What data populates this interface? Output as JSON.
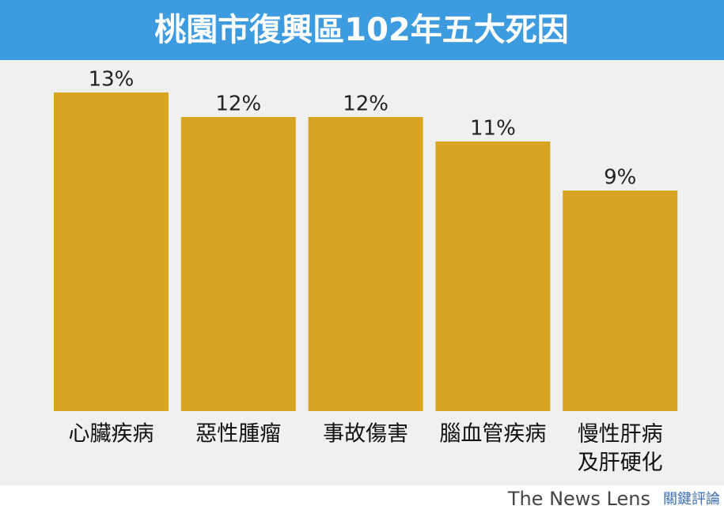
{
  "chart_data": {
    "type": "bar",
    "title": "桃園市復興區102年五大死因",
    "categories": [
      "心臟疾病",
      "惡性腫瘤",
      "事故傷害",
      "腦血管疾病",
      "慢性肝病\n及肝硬化"
    ],
    "values": [
      13,
      12,
      12,
      11,
      9
    ],
    "value_labels": [
      "13%",
      "12%",
      "12%",
      "11%",
      "9%"
    ],
    "color": "#d9a521",
    "watermark": "The News Lens",
    "watermark_cn": "關鍵評論"
  }
}
